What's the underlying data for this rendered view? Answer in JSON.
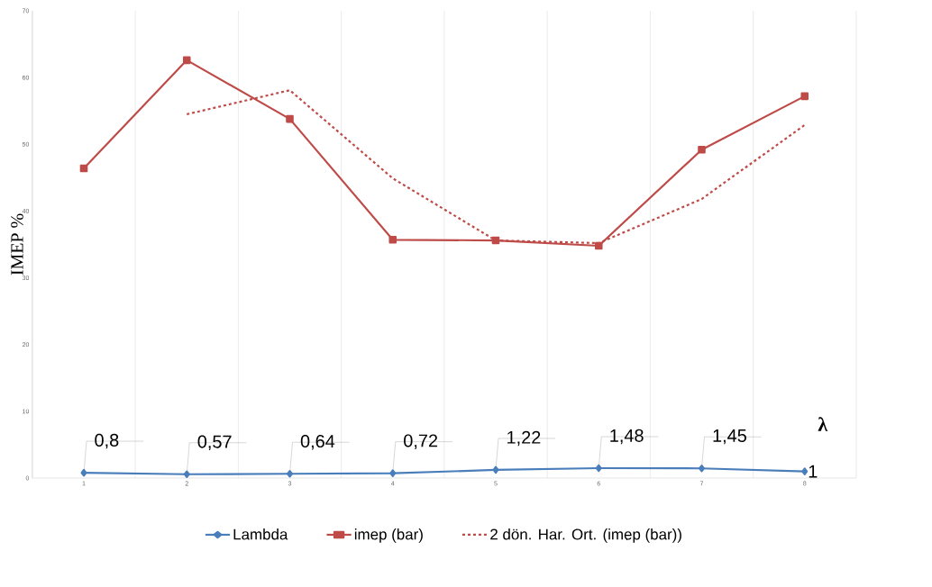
{
  "chart_data": {
    "type": "line",
    "ylabel": "IMEP %",
    "categories": [
      "1",
      "2",
      "3",
      "4",
      "5",
      "6",
      "7",
      "8"
    ],
    "series": [
      {
        "name": "Lambda",
        "color": "#4a7ebb",
        "marker": "diamond",
        "line_style": "solid",
        "values": [
          0.8,
          0.57,
          0.64,
          0.72,
          1.22,
          1.48,
          1.45,
          1
        ],
        "value_labels": [
          "0,8",
          "0,57",
          "0,64",
          "0,72",
          "1,22",
          "1,48",
          "1,45",
          "1"
        ]
      },
      {
        "name": "imep (bar)",
        "color": "#be4b48",
        "marker": "square",
        "line_style": "solid",
        "values": [
          46.4,
          62.6,
          53.8,
          35.7,
          35.6,
          34.8,
          49.2,
          57.2
        ]
      },
      {
        "name": "2 dön. Har. Ort.  (imep (bar))",
        "color": "#be4b48",
        "marker": "none",
        "line_style": "dashed",
        "values": [
          null,
          54.5,
          58.1,
          44.9,
          35.6,
          35.2,
          41.8,
          52.9
        ]
      }
    ],
    "ylim": [
      0,
      70
    ],
    "yticks": [
      0,
      10,
      20,
      30,
      40,
      50,
      60,
      70
    ],
    "grid": "x",
    "legend": "bottom",
    "annotations": [
      "λ"
    ]
  }
}
